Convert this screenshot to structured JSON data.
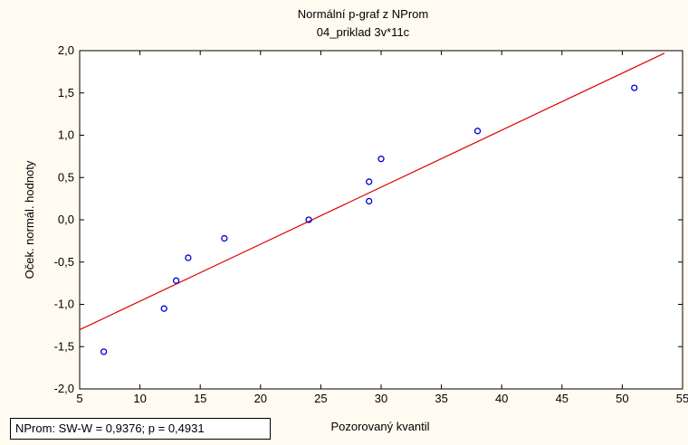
{
  "chart_data": {
    "type": "scatter",
    "title": "Normální p-graf z NProm",
    "subtitle": "04_priklad 3v*11c",
    "xlabel": "Pozorovaný kvantil",
    "ylabel": "Oček. normál. hodnoty",
    "xlim": [
      5,
      55
    ],
    "ylim": [
      -2.0,
      2.0
    ],
    "x_ticks": [
      5,
      10,
      15,
      20,
      25,
      30,
      35,
      40,
      45,
      50,
      55
    ],
    "y_ticks": [
      -2.0,
      -1.5,
      -1.0,
      -0.5,
      0.0,
      0.5,
      1.0,
      1.5,
      2.0
    ],
    "x_tick_labels": [
      "5",
      "10",
      "15",
      "20",
      "25",
      "30",
      "35",
      "40",
      "45",
      "50",
      "55"
    ],
    "y_tick_labels": [
      "-2,0",
      "-1,5",
      "-1,0",
      "-0,5",
      "0,0",
      "0,5",
      "1,0",
      "1,5",
      "2,0"
    ],
    "grid": false,
    "points": [
      {
        "x": 7,
        "y": -1.56
      },
      {
        "x": 12,
        "y": -1.05
      },
      {
        "x": 13,
        "y": -0.72
      },
      {
        "x": 14,
        "y": -0.45
      },
      {
        "x": 17,
        "y": -0.22
      },
      {
        "x": 24,
        "y": 0.0
      },
      {
        "x": 29,
        "y": 0.22
      },
      {
        "x": 29,
        "y": 0.45
      },
      {
        "x": 30,
        "y": 0.72
      },
      {
        "x": 38,
        "y": 1.05
      },
      {
        "x": 51,
        "y": 1.56
      }
    ],
    "fit_line": {
      "x": [
        5,
        53.5
      ],
      "y": [
        -1.3,
        1.97
      ]
    },
    "point_color": "#0000cc",
    "line_color": "#dd0000",
    "background": "#fffbf0",
    "stats_text": "NProm:  SW-W = 0,9376; p = 0,4931"
  }
}
